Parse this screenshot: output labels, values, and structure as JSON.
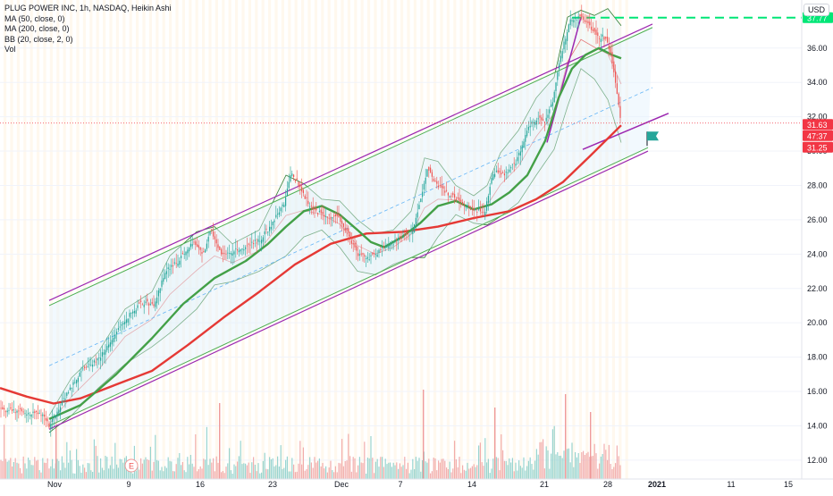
{
  "legend": {
    "symbol": "PLUG POWER INC, 1h, NASDAQ, Heikin Ashi",
    "ma50": "MA (50, close, 0)",
    "ma200": "MA (200, close, 0)",
    "bb": "BB (20, close, 2, 0)",
    "vol": "Vol"
  },
  "currency": "USD",
  "event_marker": "E",
  "colors": {
    "up": "#26a69a",
    "down": "#ef5350",
    "ma50": "#43a047",
    "ma200": "#e53935",
    "bb": "#2e7d32",
    "channel": "#9c27b0",
    "target": "#00e676",
    "axis_box": "#f23645",
    "flag": "#26a69a"
  },
  "chart_data": {
    "type": "candlestick",
    "timeframe": "1h",
    "x_ticks": [
      "Nov",
      "9",
      "16",
      "23",
      "Dec",
      "7",
      "14",
      "21",
      "28",
      "2021",
      "11",
      "15"
    ],
    "y_ticks": [
      "12.00",
      "14.00",
      "16.00",
      "18.00",
      "20.00",
      "22.00",
      "24.00",
      "26.00",
      "28.00",
      "30.00",
      "32.00",
      "34.00",
      "36.00"
    ],
    "ylim": [
      10.9,
      38.8
    ],
    "price_tags": {
      "target": "37.77",
      "last": "31.63",
      "countdown": "47:37",
      "channel": "31.25"
    },
    "series": [
      {
        "name": "PLUG POWER INC",
        "role": "price",
        "points": [
          [
            0,
            14.9
          ],
          [
            16,
            14.9
          ],
          [
            32,
            14.75
          ],
          [
            48,
            14.7
          ],
          [
            55,
            14.0
          ],
          [
            70,
            15.4
          ],
          [
            90,
            17.1
          ],
          [
            110,
            17.9
          ],
          [
            128,
            19.3
          ],
          [
            145,
            20.5
          ],
          [
            160,
            21.2
          ],
          [
            172,
            21.0
          ],
          [
            185,
            23.0
          ],
          [
            200,
            23.6
          ],
          [
            215,
            24.7
          ],
          [
            228,
            24.0
          ],
          [
            236,
            25.4
          ],
          [
            248,
            23.9
          ],
          [
            262,
            24.2
          ],
          [
            276,
            24.4
          ],
          [
            292,
            24.9
          ],
          [
            305,
            25.8
          ],
          [
            318,
            27.0
          ],
          [
            326,
            28.8
          ],
          [
            338,
            27.6
          ],
          [
            350,
            26.6
          ],
          [
            364,
            26.2
          ],
          [
            378,
            26.1
          ],
          [
            390,
            25.1
          ],
          [
            400,
            24.0
          ],
          [
            415,
            23.8
          ],
          [
            430,
            24.4
          ],
          [
            448,
            24.9
          ],
          [
            460,
            25.2
          ],
          [
            470,
            26.9
          ],
          [
            478,
            28.9
          ],
          [
            490,
            28.0
          ],
          [
            502,
            27.5
          ],
          [
            515,
            27.0
          ],
          [
            530,
            26.6
          ],
          [
            542,
            26.4
          ],
          [
            552,
            28.8
          ],
          [
            565,
            28.6
          ],
          [
            578,
            29.4
          ],
          [
            590,
            31.3
          ],
          [
            600,
            31.9
          ],
          [
            610,
            31.7
          ],
          [
            618,
            32.8
          ],
          [
            628,
            35.7
          ],
          [
            638,
            37.7
          ],
          [
            648,
            37.8
          ],
          [
            658,
            37.4
          ],
          [
            668,
            36.6
          ],
          [
            675,
            36.7
          ],
          [
            682,
            36.0
          ],
          [
            690,
            33.5
          ],
          [
            695,
            31.6
          ]
        ]
      },
      {
        "name": "MA (50, close, 0)",
        "role": "ma50",
        "points": [
          [
            55,
            14.4
          ],
          [
            90,
            15.2
          ],
          [
            130,
            17.0
          ],
          [
            170,
            19.1
          ],
          [
            205,
            21.1
          ],
          [
            240,
            22.6
          ],
          [
            275,
            23.6
          ],
          [
            300,
            24.6
          ],
          [
            320,
            25.6
          ],
          [
            340,
            26.5
          ],
          [
            360,
            26.8
          ],
          [
            380,
            26.3
          ],
          [
            400,
            25.4
          ],
          [
            415,
            24.7
          ],
          [
            430,
            24.4
          ],
          [
            450,
            25.0
          ],
          [
            470,
            25.8
          ],
          [
            490,
            26.8
          ],
          [
            510,
            27.1
          ],
          [
            530,
            26.6
          ],
          [
            550,
            26.9
          ],
          [
            570,
            27.6
          ],
          [
            590,
            28.6
          ],
          [
            610,
            30.6
          ],
          [
            625,
            33.1
          ],
          [
            640,
            34.8
          ],
          [
            655,
            35.6
          ],
          [
            670,
            36.0
          ],
          [
            685,
            35.6
          ],
          [
            695,
            35.4
          ]
        ]
      },
      {
        "name": "MA (200, close, 0)",
        "role": "ma200",
        "points": [
          [
            0,
            16.2
          ],
          [
            30,
            15.7
          ],
          [
            60,
            15.3
          ],
          [
            90,
            15.6
          ],
          [
            130,
            16.4
          ],
          [
            170,
            17.2
          ],
          [
            210,
            18.7
          ],
          [
            250,
            20.3
          ],
          [
            290,
            21.8
          ],
          [
            330,
            23.4
          ],
          [
            370,
            24.6
          ],
          [
            410,
            25.2
          ],
          [
            450,
            25.3
          ],
          [
            490,
            25.6
          ],
          [
            530,
            26.1
          ],
          [
            570,
            26.5
          ],
          [
            600,
            27.2
          ],
          [
            630,
            28.2
          ],
          [
            660,
            29.7
          ],
          [
            695,
            31.5
          ]
        ]
      },
      {
        "name": "BB (20, close, 2, 0)",
        "role": "bb_upper",
        "points": [
          [
            55,
            14.6
          ],
          [
            80,
            16.8
          ],
          [
            110,
            18.3
          ],
          [
            140,
            20.8
          ],
          [
            170,
            21.8
          ],
          [
            190,
            23.9
          ],
          [
            220,
            25.3
          ],
          [
            240,
            25.6
          ],
          [
            260,
            24.6
          ],
          [
            290,
            25.4
          ],
          [
            320,
            28.6
          ],
          [
            340,
            28.1
          ],
          [
            360,
            27.2
          ],
          [
            380,
            27.1
          ],
          [
            400,
            26.0
          ],
          [
            420,
            25.2
          ],
          [
            440,
            25.4
          ],
          [
            460,
            26.5
          ],
          [
            475,
            29.6
          ],
          [
            490,
            29.4
          ],
          [
            510,
            28.0
          ],
          [
            530,
            27.4
          ],
          [
            545,
            28.0
          ],
          [
            560,
            29.9
          ],
          [
            580,
            31.2
          ],
          [
            600,
            33.1
          ],
          [
            620,
            34.3
          ],
          [
            635,
            37.8
          ],
          [
            650,
            38.2
          ],
          [
            665,
            37.9
          ],
          [
            680,
            38.3
          ],
          [
            695,
            37.3
          ]
        ]
      },
      {
        "name": "BB (20, close, 2, 0)",
        "role": "bb_lower",
        "points": [
          [
            55,
            13.6
          ],
          [
            80,
            14.6
          ],
          [
            110,
            16.2
          ],
          [
            140,
            17.6
          ],
          [
            170,
            18.6
          ],
          [
            190,
            19.4
          ],
          [
            220,
            20.8
          ],
          [
            240,
            22.2
          ],
          [
            260,
            22.4
          ],
          [
            290,
            23.0
          ],
          [
            320,
            23.9
          ],
          [
            340,
            25.0
          ],
          [
            360,
            25.4
          ],
          [
            380,
            24.4
          ],
          [
            400,
            23.0
          ],
          [
            420,
            22.8
          ],
          [
            440,
            23.4
          ],
          [
            460,
            23.8
          ],
          [
            475,
            23.8
          ],
          [
            490,
            25.0
          ],
          [
            510,
            26.3
          ],
          [
            530,
            25.8
          ],
          [
            545,
            25.7
          ],
          [
            560,
            26.2
          ],
          [
            580,
            27.0
          ],
          [
            600,
            28.6
          ],
          [
            620,
            30.1
          ],
          [
            635,
            32.6
          ],
          [
            650,
            34.8
          ],
          [
            665,
            34.2
          ],
          [
            680,
            33.0
          ],
          [
            695,
            30.5
          ]
        ]
      }
    ],
    "channel": {
      "upper": [
        [
          55,
          21.0
        ],
        [
          730,
          37.2
        ]
      ],
      "lower": [
        [
          55,
          14.0
        ],
        [
          725,
          30.2
        ]
      ],
      "middle": [
        [
          55,
          17.5
        ],
        [
          730,
          33.7
        ]
      ],
      "purple_upper": [
        [
          55,
          21.3
        ],
        [
          730,
          37.4
        ]
      ],
      "purple_lower": [
        [
          55,
          13.8
        ],
        [
          725,
          30.0
        ]
      ],
      "steep_line": [
        [
          612,
          30.5
        ],
        [
          650,
          37.8
        ]
      ],
      "short_line": [
        [
          652,
          30.1
        ],
        [
          748,
          32.2
        ]
      ],
      "target_line_price": 37.77
    }
  }
}
